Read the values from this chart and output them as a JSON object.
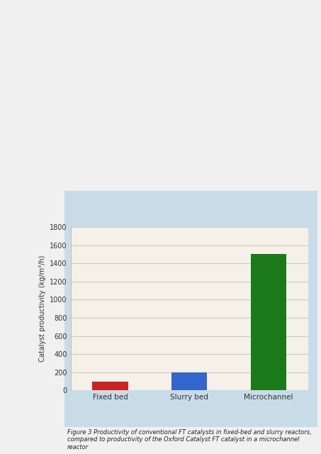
{
  "title": "Figure 3 Productivity of conventional FT catalysts in fixed-bed and slurry reactors,\ncompared to productivity of the Oxford Catalyst FT catalyst in a microchannel reactor",
  "categories": [
    "Fixed bed",
    "Slurry bed",
    "Microchannel"
  ],
  "values": [
    100,
    200,
    1500
  ],
  "bar_colors": [
    "#cc2222",
    "#3366cc",
    "#1a7a1a"
  ],
  "ylabel": "Catalyst productivity (kg/m³/h)",
  "ylim": [
    0,
    1800
  ],
  "yticks": [
    0,
    200,
    400,
    600,
    800,
    1000,
    1200,
    1400,
    1600,
    1800
  ],
  "background_color": "#f5f0e8",
  "outer_bg": "#c8dce8",
  "plot_bg": "#f5f0e8",
  "bar_width": 0.45,
  "grid_color": "#ccccbb",
  "axis_color": "#555555"
}
